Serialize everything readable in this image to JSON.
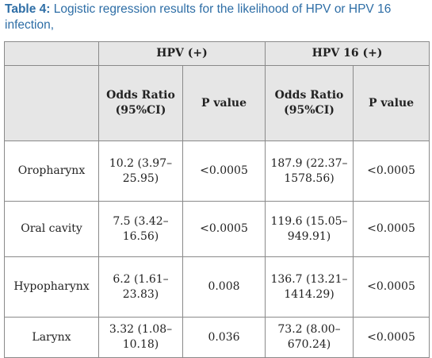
{
  "caption": {
    "label": "Table 4:",
    "text": " Logistic regression results for the likelihood of HPV or HPV 16 infection,"
  },
  "table": {
    "group_headers": [
      "HPV (+)",
      "HPV 16 (+)"
    ],
    "sub_headers": [
      "Odds Ratio (95%CI)",
      "P value",
      "Odds Ratio (95%CI)",
      "P value"
    ],
    "rows": [
      {
        "site": "Oropharynx",
        "hpv_or": "10.2 (3.97–25.95)",
        "hpv_p": "<0.0005",
        "hpv16_or": "187.9 (22.37–1578.56)",
        "hpv16_p": "<0.0005"
      },
      {
        "site": "Oral cavity",
        "hpv_or": "7.5 (3.42–16.56)",
        "hpv_p": "<0.0005",
        "hpv16_or": "119.6 (15.05–949.91)",
        "hpv16_p": "<0.0005"
      },
      {
        "site": "Hypopharynx",
        "hpv_or": "6.2 (1.61–23.83)",
        "hpv_p": "0.008",
        "hpv16_or": "136.7 (13.21–1414.29)",
        "hpv16_p": "<0.0005"
      },
      {
        "site": "Larynx",
        "hpv_or": "3.32 (1.08–10.18)",
        "hpv_p": "0.036",
        "hpv16_or": "73.2 (8.00–670.24)",
        "hpv16_p": "<0.0005"
      }
    ]
  }
}
